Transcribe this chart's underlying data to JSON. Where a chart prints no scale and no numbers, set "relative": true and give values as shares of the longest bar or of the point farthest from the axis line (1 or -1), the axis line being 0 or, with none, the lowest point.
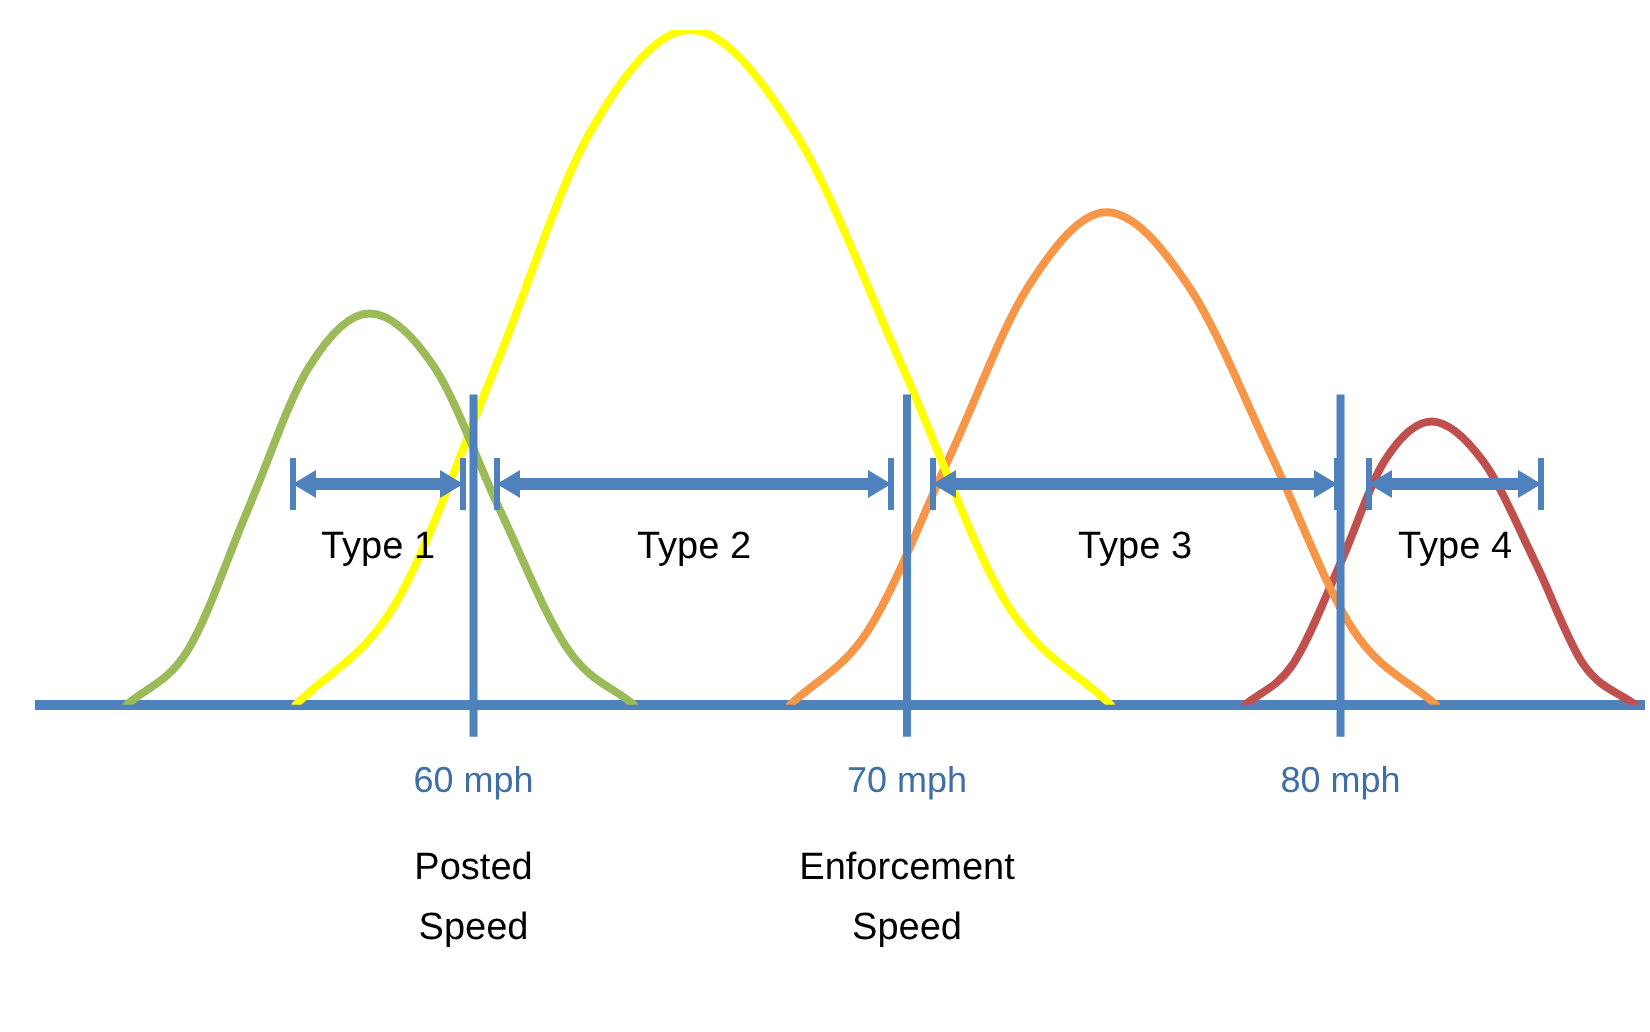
{
  "chart_data": {
    "type": "line",
    "relative": true,
    "xlim": [
      50,
      87
    ],
    "xticks": [
      {
        "value": 60,
        "label": "60 mph"
      },
      {
        "value": 70,
        "label": "70 mph"
      },
      {
        "value": 80,
        "label": "80 mph"
      }
    ],
    "tick_labels": "x",
    "grid": false,
    "legend": false,
    "marker": "none",
    "series": [
      {
        "color": "#9bbb59",
        "x": [
          52.0,
          53.4,
          54.8,
          56.2,
          57.6,
          59.1,
          60.6,
          62.2,
          63.7
        ],
        "values": [
          0,
          0.08,
          0.29,
          0.5,
          0.58,
          0.5,
          0.29,
          0.08,
          0
        ]
      },
      {
        "color": "#ffff00",
        "x": [
          55.9,
          58.2,
          60.5,
          62.7,
          65.0,
          67.4,
          69.9,
          72.3,
          74.7
        ],
        "values": [
          0,
          0.15,
          0.5,
          0.85,
          1,
          0.85,
          0.5,
          0.15,
          0
        ]
      },
      {
        "color": "#f79646",
        "x": [
          67.3,
          69.1,
          71.0,
          72.8,
          74.6,
          76.5,
          78.4,
          80.3,
          82.2
        ],
        "values": [
          0,
          0.11,
          0.37,
          0.62,
          0.73,
          0.62,
          0.37,
          0.11,
          0
        ]
      },
      {
        "color": "#c0504d",
        "x": [
          77.8,
          78.9,
          80.0,
          81.0,
          82.1,
          83.3,
          84.5,
          85.6,
          86.8
        ],
        "values": [
          0,
          0.06,
          0.21,
          0.36,
          0.42,
          0.36,
          0.21,
          0.06,
          0
        ]
      }
    ],
    "ref_lines": [
      {
        "axis": "x",
        "value": 60,
        "color": "#4f81bd"
      },
      {
        "axis": "x",
        "value": 70,
        "color": "#4f81bd"
      },
      {
        "axis": "x",
        "value": 80,
        "color": "#4f81bd"
      }
    ],
    "annotations": [
      "Type 1",
      "Type 2",
      "Type 3",
      "Type 4",
      "Posted Speed",
      "Enforcement Speed"
    ]
  }
}
